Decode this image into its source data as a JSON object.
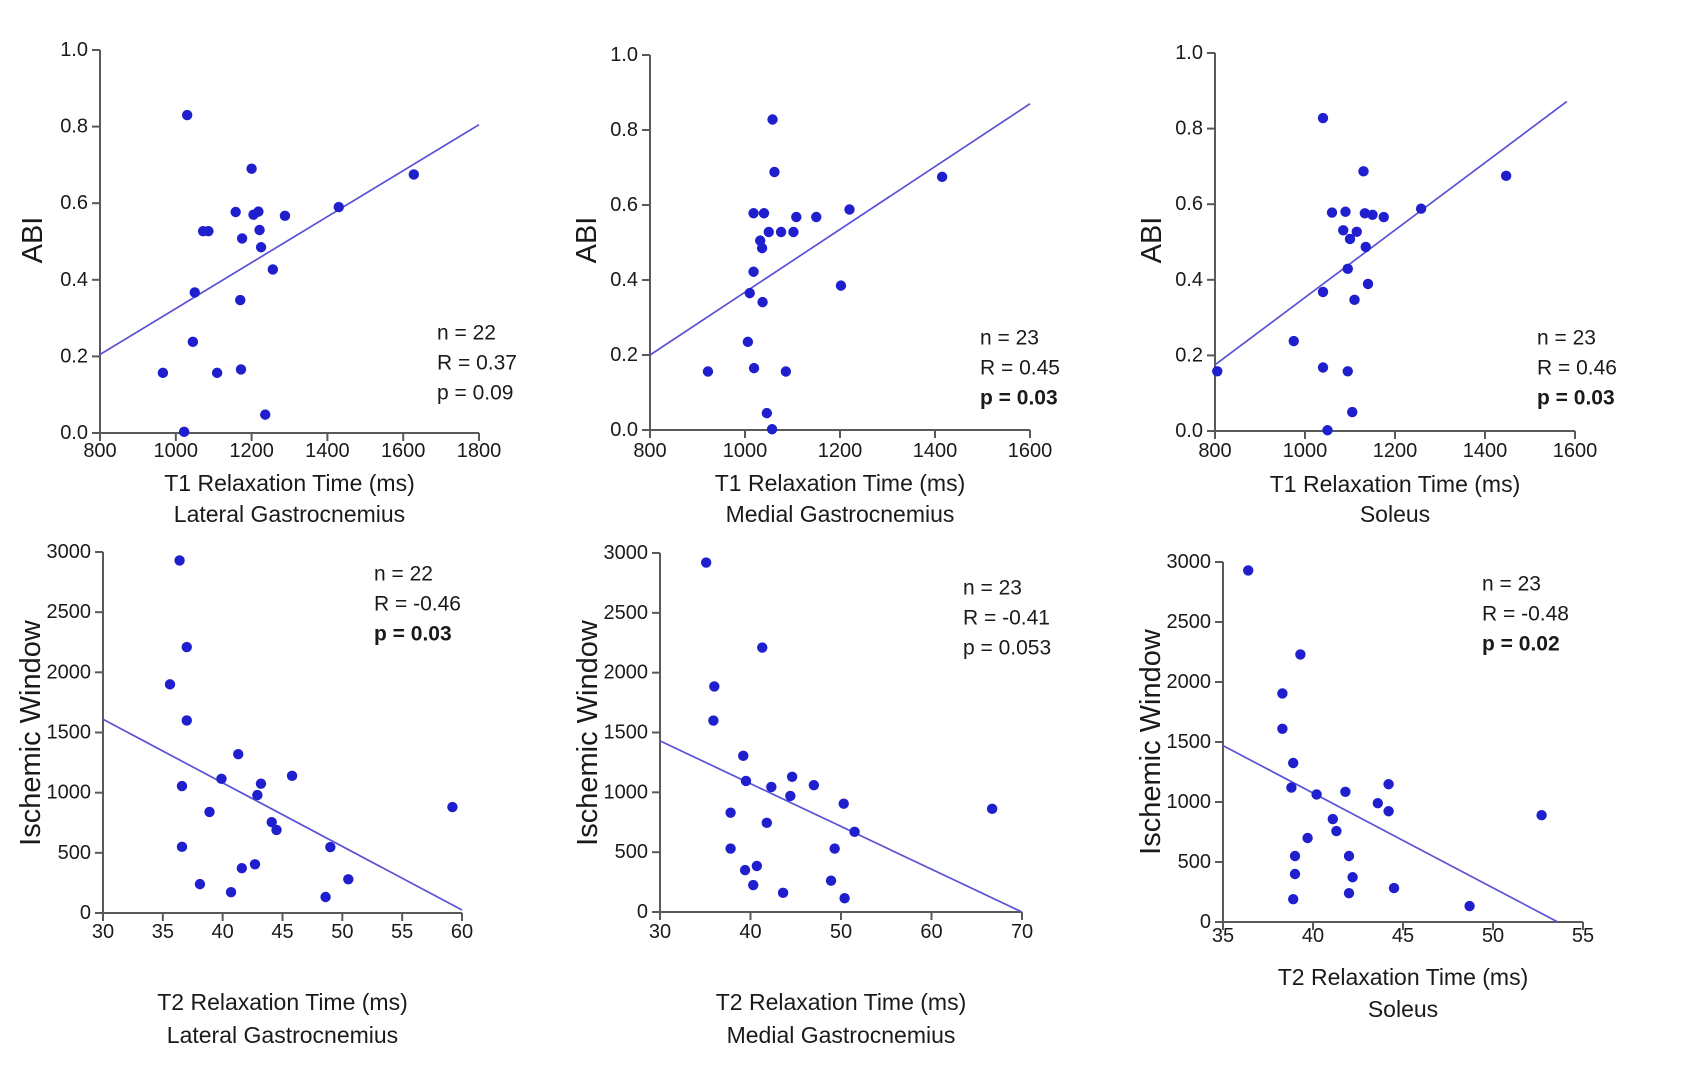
{
  "figure": {
    "description": "Six scatter plots correlating MRI relaxation times with ABI and Ischemic Window",
    "background_color": "#ffffff",
    "point_color": "#1f1fce",
    "trend_color": "#5a52d6",
    "axis_color": "#595959",
    "text_color": "#1a1a1a"
  },
  "chart_data": [
    {
      "type": "scatter",
      "ylabel": "ABI",
      "xlabel_line1": "T1 Relaxation Time (ms)",
      "xlabel_line2": "Lateral Gastrocnemius",
      "xlim": [
        800,
        1800
      ],
      "xticks": [
        800,
        1000,
        1200,
        1400,
        1600,
        1800
      ],
      "xtick_labels": [
        "800",
        "1000",
        "1200",
        "1400",
        "1600",
        "1800"
      ],
      "ylim": [
        0,
        1
      ],
      "yticks": [
        0,
        0.2,
        0.4,
        0.6,
        0.8,
        1.0
      ],
      "ytick_labels": [
        "0.0",
        "0.2",
        "0.4",
        "0.6",
        "0.8",
        "1.0"
      ],
      "grid": false,
      "trendline": {
        "x1": 800,
        "y1": 0.205,
        "x2": 1800,
        "y2": 0.805
      },
      "annotation": {
        "lines": [
          {
            "text": "n = 22",
            "bold": false
          },
          {
            "text": "R = 0.37",
            "bold": false
          },
          {
            "text": "p = 0.09",
            "bold": false
          }
        ]
      },
      "points": [
        [
          1030,
          0.83
        ],
        [
          1200,
          0.69
        ],
        [
          1628,
          0.675
        ],
        [
          1430,
          0.59
        ],
        [
          1158,
          0.577
        ],
        [
          1205,
          0.57
        ],
        [
          1218,
          0.578
        ],
        [
          1288,
          0.567
        ],
        [
          1072,
          0.527
        ],
        [
          1086,
          0.527
        ],
        [
          1221,
          0.53
        ],
        [
          1175,
          0.508
        ],
        [
          1225,
          0.485
        ],
        [
          1256,
          0.427
        ],
        [
          1050,
          0.367
        ],
        [
          1170,
          0.347
        ],
        [
          1045,
          0.238
        ],
        [
          966,
          0.157
        ],
        [
          1109,
          0.157
        ],
        [
          1172,
          0.166
        ],
        [
          1236,
          0.048
        ],
        [
          1022,
          0.003
        ]
      ]
    },
    {
      "type": "scatter",
      "ylabel": "ABI",
      "xlabel_line1": "T1 Relaxation Time (ms)",
      "xlabel_line2": "Medial Gastrocnemius",
      "xlim": [
        800,
        1600
      ],
      "xticks": [
        800,
        1000,
        1200,
        1400,
        1600
      ],
      "xtick_labels": [
        "800",
        "1000",
        "1200",
        "1400",
        "1600"
      ],
      "ylim": [
        0,
        1
      ],
      "yticks": [
        0,
        0.2,
        0.4,
        0.6,
        0.8,
        1.0
      ],
      "ytick_labels": [
        "0.0",
        "0.2",
        "0.4",
        "0.6",
        "0.8",
        "1.0"
      ],
      "grid": false,
      "trendline": {
        "x1": 800,
        "y1": 0.2,
        "x2": 1600,
        "y2": 0.87
      },
      "annotation": {
        "lines": [
          {
            "text": "n = 23",
            "bold": false
          },
          {
            "text": "R = 0.45",
            "bold": false
          },
          {
            "text": "p = 0.03",
            "bold": true
          }
        ]
      },
      "points": [
        [
          1058,
          0.828
        ],
        [
          1062,
          0.688
        ],
        [
          1415,
          0.675
        ],
        [
          1220,
          0.588
        ],
        [
          1018,
          0.578
        ],
        [
          1040,
          0.578
        ],
        [
          1108,
          0.568
        ],
        [
          1150,
          0.568
        ],
        [
          1050,
          0.528
        ],
        [
          1076,
          0.528
        ],
        [
          1102,
          0.528
        ],
        [
          1032,
          0.505
        ],
        [
          1036,
          0.485
        ],
        [
          1018,
          0.422
        ],
        [
          1202,
          0.385
        ],
        [
          1010,
          0.365
        ],
        [
          1037,
          0.341
        ],
        [
          1006,
          0.235
        ],
        [
          922,
          0.156
        ],
        [
          1019,
          0.165
        ],
        [
          1086,
          0.156
        ],
        [
          1046,
          0.045
        ],
        [
          1057,
          0.002
        ]
      ]
    },
    {
      "type": "scatter",
      "ylabel": "ABI",
      "xlabel_line1": "T1 Relaxation Time (ms)",
      "xlabel_line2": "Soleus",
      "xlim": [
        800,
        1600
      ],
      "xticks": [
        800,
        1000,
        1200,
        1400,
        1600
      ],
      "xtick_labels": [
        "800",
        "1000",
        "1200",
        "1400",
        "1600"
      ],
      "ylim": [
        0,
        1
      ],
      "yticks": [
        0,
        0.2,
        0.4,
        0.6,
        0.8,
        1.0
      ],
      "ytick_labels": [
        "0.0",
        "0.2",
        "0.4",
        "0.6",
        "0.8",
        "1.0"
      ],
      "grid": false,
      "trendline": {
        "x1": 800,
        "y1": 0.175,
        "x2": 1582,
        "y2": 0.872
      },
      "annotation": {
        "lines": [
          {
            "text": "n = 23",
            "bold": false
          },
          {
            "text": "R = 0.46",
            "bold": false
          },
          {
            "text": "p = 0.03",
            "bold": true
          }
        ]
      },
      "points": [
        [
          1040,
          0.828
        ],
        [
          1130,
          0.687
        ],
        [
          1447,
          0.675
        ],
        [
          1258,
          0.588
        ],
        [
          1060,
          0.578
        ],
        [
          1090,
          0.58
        ],
        [
          1133,
          0.576
        ],
        [
          1150,
          0.572
        ],
        [
          1175,
          0.566
        ],
        [
          1085,
          0.531
        ],
        [
          1115,
          0.527
        ],
        [
          1100,
          0.508
        ],
        [
          1135,
          0.487
        ],
        [
          1095,
          0.429
        ],
        [
          1140,
          0.389
        ],
        [
          1040,
          0.368
        ],
        [
          1110,
          0.347
        ],
        [
          975,
          0.238
        ],
        [
          805,
          0.158
        ],
        [
          1040,
          0.168
        ],
        [
          1095,
          0.158
        ],
        [
          1105,
          0.05
        ],
        [
          1050,
          0.002
        ]
      ]
    },
    {
      "type": "scatter",
      "ylabel": "Ischemic Window",
      "xlabel_line1": "T2 Relaxation Time (ms)",
      "xlabel_line2": "Lateral Gastrocnemius",
      "xlim": [
        30,
        60
      ],
      "xticks": [
        30,
        35,
        40,
        45,
        50,
        55,
        60
      ],
      "xtick_labels": [
        "30",
        "35",
        "40",
        "45",
        "50",
        "55",
        "60"
      ],
      "ylim": [
        0,
        3000
      ],
      "yticks": [
        0,
        500,
        1000,
        1500,
        2000,
        2500,
        3000
      ],
      "ytick_labels": [
        "0",
        "500",
        "1000",
        "1500",
        "2000",
        "2500",
        "3000"
      ],
      "grid": false,
      "trendline": {
        "x1": 30,
        "y1": 1610,
        "x2": 60,
        "y2": 25
      },
      "annotation": {
        "lines": [
          {
            "text": "n = 22",
            "bold": false
          },
          {
            "text": "R = -0.46",
            "bold": false
          },
          {
            "text": "p = 0.03",
            "bold": true
          }
        ]
      },
      "points": [
        [
          36.4,
          2930
        ],
        [
          37.0,
          2210
        ],
        [
          35.6,
          1900
        ],
        [
          37.0,
          1600
        ],
        [
          41.3,
          1320
        ],
        [
          45.8,
          1140
        ],
        [
          39.9,
          1115
        ],
        [
          43.2,
          1075
        ],
        [
          36.6,
          1055
        ],
        [
          42.9,
          980
        ],
        [
          59.2,
          880
        ],
        [
          38.9,
          840
        ],
        [
          44.1,
          755
        ],
        [
          44.5,
          690
        ],
        [
          36.6,
          550
        ],
        [
          49.0,
          548
        ],
        [
          42.7,
          405
        ],
        [
          41.6,
          372
        ],
        [
          50.5,
          280
        ],
        [
          38.1,
          240
        ],
        [
          40.7,
          173
        ],
        [
          48.6,
          133
        ]
      ]
    },
    {
      "type": "scatter",
      "ylabel": "Ischemic Window",
      "xlabel_line1": "T2 Relaxation Time (ms)",
      "xlabel_line2": "Medial Gastrocnemius",
      "xlim": [
        30,
        70
      ],
      "xticks": [
        30,
        40,
        50,
        60,
        70
      ],
      "xtick_labels": [
        "30",
        "40",
        "50",
        "60",
        "70"
      ],
      "ylim": [
        0,
        3000
      ],
      "yticks": [
        0,
        500,
        1000,
        1500,
        2000,
        2500,
        3000
      ],
      "ytick_labels": [
        "0",
        "500",
        "1000",
        "1500",
        "2000",
        "2500",
        "3000"
      ],
      "grid": false,
      "trendline": {
        "x1": 30,
        "y1": 1430,
        "x2": 70,
        "y2": 0
      },
      "annotation": {
        "lines": [
          {
            "text": "n = 23",
            "bold": false
          },
          {
            "text": "R = -0.41",
            "bold": false
          },
          {
            "text": "p = 0.053",
            "bold": false
          }
        ]
      },
      "points": [
        [
          35.1,
          2920
        ],
        [
          41.3,
          2210
        ],
        [
          36.0,
          1885
        ],
        [
          35.9,
          1600
        ],
        [
          39.2,
          1305
        ],
        [
          44.6,
          1130
        ],
        [
          39.5,
          1095
        ],
        [
          47.0,
          1060
        ],
        [
          42.3,
          1045
        ],
        [
          44.4,
          970
        ],
        [
          50.3,
          905
        ],
        [
          66.7,
          862
        ],
        [
          37.8,
          830
        ],
        [
          41.8,
          745
        ],
        [
          51.5,
          670
        ],
        [
          37.8,
          530
        ],
        [
          49.3,
          530
        ],
        [
          40.7,
          385
        ],
        [
          39.4,
          350
        ],
        [
          48.9,
          262
        ],
        [
          40.3,
          225
        ],
        [
          43.6,
          160
        ],
        [
          50.4,
          115
        ]
      ]
    },
    {
      "type": "scatter",
      "ylabel": "Ischemic Window",
      "xlabel_line1": "T2 Relaxation Time (ms)",
      "xlabel_line2": "Soleus",
      "xlim": [
        35,
        55
      ],
      "xticks": [
        35,
        40,
        45,
        50,
        55
      ],
      "xtick_labels": [
        "35",
        "40",
        "45",
        "50",
        "55"
      ],
      "ylim": [
        0,
        3000
      ],
      "yticks": [
        0,
        500,
        1000,
        1500,
        2000,
        2500,
        3000
      ],
      "ytick_labels": [
        "0",
        "500",
        "1000",
        "1500",
        "2000",
        "2500",
        "3000"
      ],
      "grid": false,
      "trendline": {
        "x1": 35,
        "y1": 1470,
        "x2": 53.6,
        "y2": 0
      },
      "annotation": {
        "lines": [
          {
            "text": "n = 23",
            "bold": false
          },
          {
            "text": "R = -0.48",
            "bold": false
          },
          {
            "text": "p = 0.02",
            "bold": true
          }
        ]
      },
      "points": [
        [
          36.4,
          2930
        ],
        [
          39.3,
          2230
        ],
        [
          38.3,
          1905
        ],
        [
          38.3,
          1610
        ],
        [
          38.9,
          1325
        ],
        [
          38.8,
          1120
        ],
        [
          40.2,
          1063
        ],
        [
          41.8,
          1085
        ],
        [
          44.2,
          1148
        ],
        [
          43.6,
          990
        ],
        [
          44.2,
          923
        ],
        [
          52.7,
          890
        ],
        [
          41.1,
          858
        ],
        [
          41.3,
          758
        ],
        [
          39.7,
          700
        ],
        [
          39.0,
          550
        ],
        [
          42.0,
          550
        ],
        [
          39.0,
          400
        ],
        [
          42.2,
          373
        ],
        [
          44.5,
          283
        ],
        [
          42.0,
          240
        ],
        [
          38.9,
          190
        ],
        [
          48.7,
          133
        ]
      ]
    }
  ]
}
